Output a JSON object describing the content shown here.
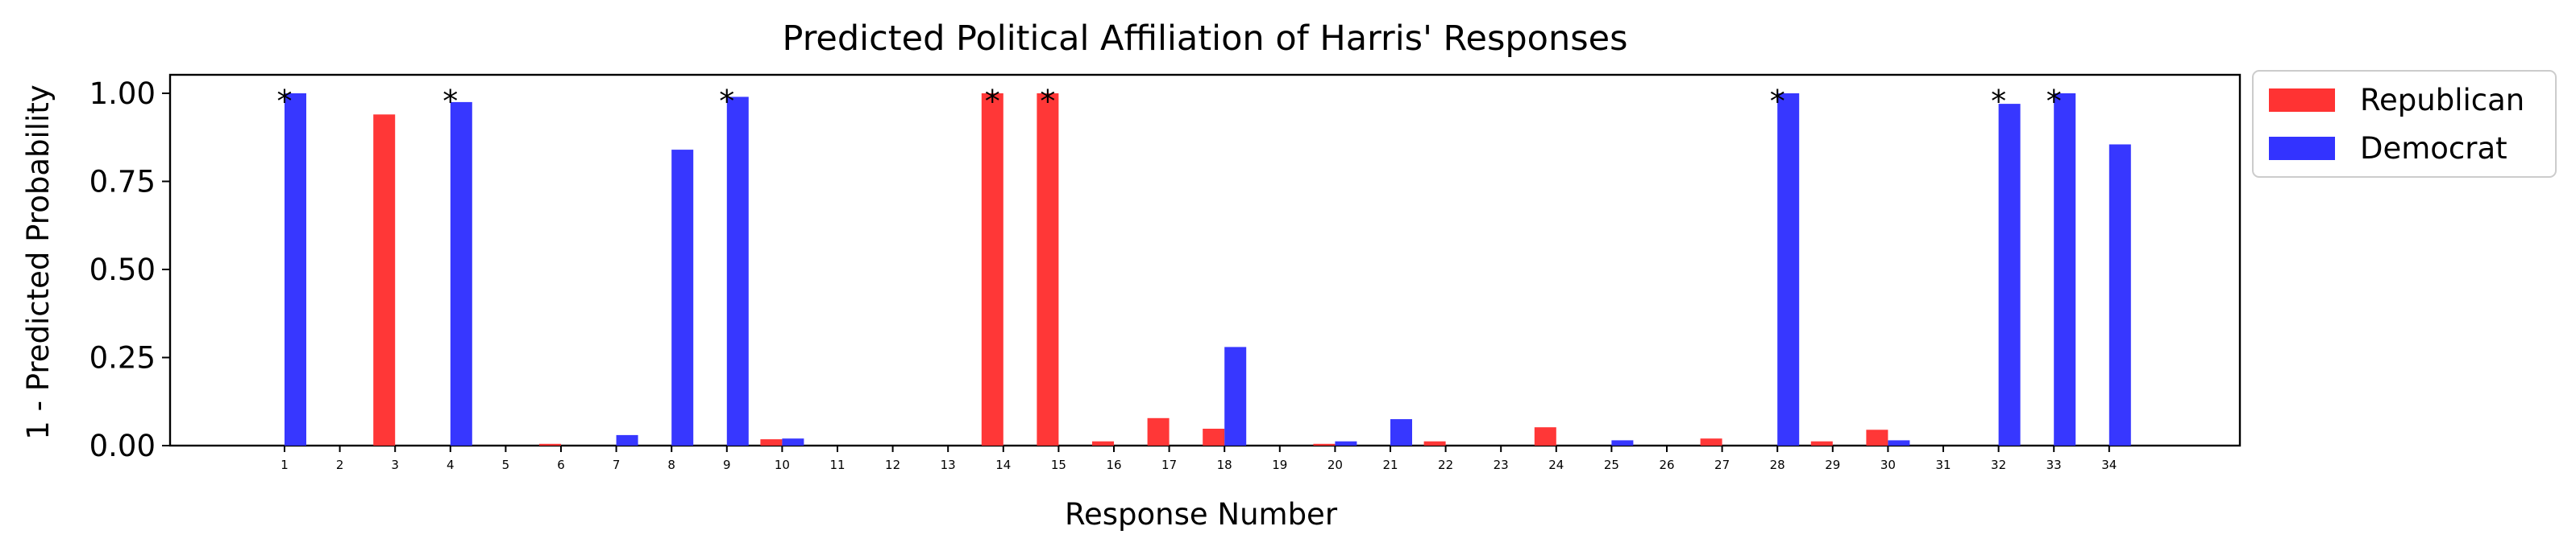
{
  "chart_data": {
    "type": "bar",
    "title": "Predicted Political Affiliation of Harris' Responses",
    "xlabel": "Response Number",
    "ylabel": "1 - Predicted Probability",
    "ylim": [
      0,
      1.05
    ],
    "yticks": [
      "0.00",
      "0.25",
      "0.50",
      "0.75",
      "1.00"
    ],
    "categories": [
      "1",
      "2",
      "3",
      "4",
      "5",
      "6",
      "7",
      "8",
      "9",
      "10",
      "11",
      "12",
      "13",
      "14",
      "15",
      "16",
      "17",
      "18",
      "19",
      "20",
      "21",
      "22",
      "23",
      "24",
      "25",
      "26",
      "27",
      "28",
      "29",
      "30",
      "31",
      "32",
      "33",
      "34"
    ],
    "series": [
      {
        "name": "Republican",
        "color": "#ff3333",
        "values": [
          0,
          0,
          0.94,
          0,
          0,
          0.005,
          0,
          0,
          0,
          0.018,
          0,
          0,
          0,
          1.0,
          1.0,
          0.012,
          0.078,
          0.048,
          0,
          0.005,
          0,
          0.012,
          0,
          0.052,
          0,
          0,
          0.02,
          0,
          0.012,
          0.045,
          0,
          0,
          0,
          0
        ]
      },
      {
        "name": "Democrat",
        "color": "#3333ff",
        "values": [
          1.0,
          0,
          0,
          0.975,
          0,
          0,
          0.03,
          0.84,
          0.99,
          0.02,
          0,
          0,
          0,
          0,
          0,
          0,
          0,
          0.28,
          0,
          0.012,
          0.075,
          0,
          0,
          0,
          0.015,
          0,
          0,
          1.0,
          0,
          0.015,
          0,
          0.97,
          1.0,
          0.855
        ]
      }
    ],
    "annotations": {
      "marker": "*",
      "responses": [
        "1",
        "4",
        "9",
        "14",
        "15",
        "28",
        "32",
        "33"
      ]
    },
    "legend": {
      "placement": "outside-top-right"
    },
    "grid": false
  }
}
